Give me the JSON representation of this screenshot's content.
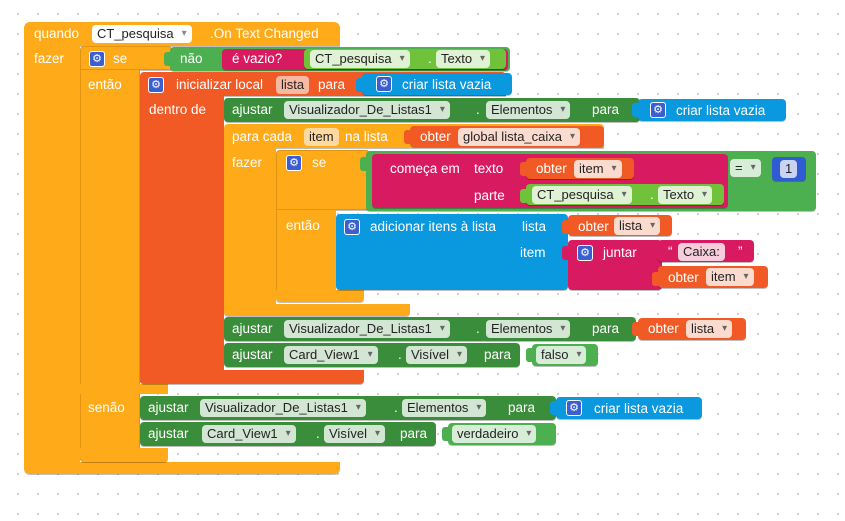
{
  "event": {
    "when": "quando",
    "component": "CT_pesquisa",
    "event_name": ".On Text Changed",
    "do": "fazer"
  },
  "if_block": {
    "if": "se",
    "then": "então",
    "else": "senão"
  },
  "cond": {
    "not": "não",
    "is_empty": "é vazio?",
    "component": "CT_pesquisa",
    "property": "Texto"
  },
  "local": {
    "init": "inicializar local",
    "name": "lista",
    "to": "para",
    "in": "dentro de",
    "create_empty": "criar lista vazia"
  },
  "set1": {
    "set": "ajustar",
    "component": "Visualizador_De_Listas1",
    "property": "Elementos",
    "to": "para",
    "create_empty": "criar lista vazia"
  },
  "foreach": {
    "for_each": "para cada",
    "item": "item",
    "in_list": "na lista",
    "get": "obter",
    "global": "global lista_caixa",
    "do": "fazer"
  },
  "inner_if": {
    "if": "se",
    "then": "então"
  },
  "starts": {
    "label": "começa em",
    "text": "texto",
    "get": "obter",
    "item": "item",
    "piece": "parte",
    "component": "CT_pesquisa",
    "property": "Texto"
  },
  "compare": {
    "op": "=",
    "number": "1"
  },
  "add": {
    "label": "adicionar itens à lista",
    "list_label": "lista",
    "get": "obter",
    "list_var": "lista",
    "item_label": "item",
    "join": "juntar",
    "text_value": "Caixa: ",
    "get2": "obter",
    "item_var": "item"
  },
  "set2": {
    "set": "ajustar",
    "component": "Visualizador_De_Listas1",
    "property": "Elementos",
    "to": "para",
    "get": "obter",
    "var": "lista"
  },
  "set3": {
    "set": "ajustar",
    "component": "Card_View1",
    "property": "Visível",
    "to": "para",
    "value": "falso"
  },
  "else1": {
    "set": "ajustar",
    "component": "Visualizador_De_Listas1",
    "property": "Elementos",
    "to": "para",
    "create_empty": "criar lista vazia"
  },
  "else2": {
    "set": "ajustar",
    "component": "Card_View1",
    "property": "Visível",
    "to": "para",
    "value": "verdadeiro"
  },
  "colors": {
    "event": "#ffab19",
    "control": "#ffab19",
    "local": "#f15a24",
    "component_set": "#3a8d3a",
    "component_get": "#6fc23a",
    "list": "#0a98de",
    "text": "#d81b60",
    "logic": "#4caf50",
    "math": "#2f5bd3",
    "background": "#ffffff"
  }
}
